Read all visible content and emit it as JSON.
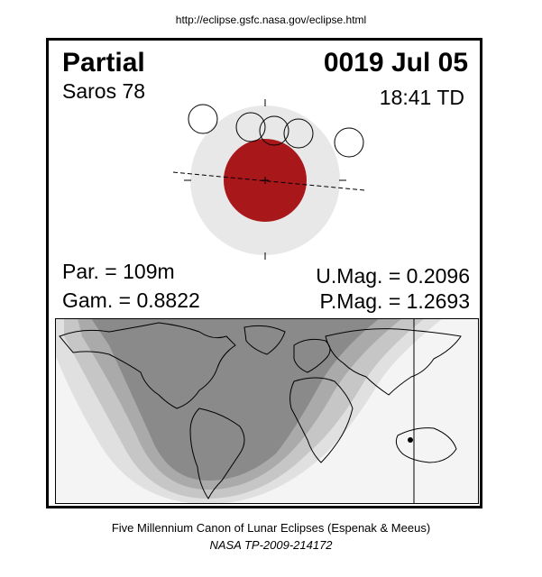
{
  "source_url": "http://eclipse.gsfc.nasa.gov/eclipse.html",
  "eclipse": {
    "type": "Partial",
    "date": "0019 Jul 05",
    "saros": "Saros  78",
    "time": "18:41 TD",
    "par": "Par. = 109m",
    "gam": "Gam. = 0.8822",
    "umag": "U.Mag. = 0.2096",
    "pmag": "P.Mag. = 1.2693"
  },
  "colors": {
    "umbra": "#a8171a",
    "penumbra": "#e8e8e8",
    "map_dark": "#8a8a8a",
    "map_mid": "#b0b0b0",
    "map_light": "#d2d2d2",
    "map_lightest": "#ebebeb"
  },
  "footer": {
    "credit": "Five Millennium Canon of Lunar Eclipses (Espenak & Meeus)",
    "publication": "NASA TP-2009-214172"
  }
}
